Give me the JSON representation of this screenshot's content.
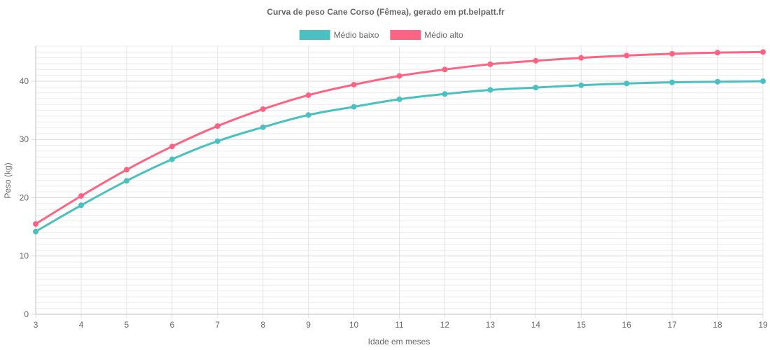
{
  "chart_data": {
    "type": "line",
    "title": "Curva de peso Cane Corso (Fêmea), gerado em pt.belpatt.fr",
    "xlabel": "Idade em meses",
    "ylabel": "Peso (kg)",
    "x": [
      3,
      4,
      5,
      6,
      7,
      8,
      9,
      10,
      11,
      12,
      13,
      14,
      15,
      16,
      17,
      18,
      19
    ],
    "xlim": [
      3,
      19
    ],
    "ylim": [
      0,
      46
    ],
    "y_ticks": [
      0,
      10,
      20,
      30,
      40
    ],
    "y_minor_step": 1,
    "grid": true,
    "legend_position": "top",
    "series": [
      {
        "name": "Médio baixo",
        "color": "#4bc0c0",
        "values": [
          14.2,
          18.7,
          22.9,
          26.6,
          29.7,
          32.1,
          34.2,
          35.6,
          36.9,
          37.8,
          38.5,
          38.9,
          39.3,
          39.6,
          39.8,
          39.9,
          40.0
        ]
      },
      {
        "name": "Médio alto",
        "color": "#ff6384",
        "values": [
          15.5,
          20.3,
          24.8,
          28.8,
          32.3,
          35.2,
          37.6,
          39.4,
          40.9,
          42.0,
          42.9,
          43.5,
          44.0,
          44.4,
          44.7,
          44.9,
          45.0
        ]
      }
    ]
  }
}
